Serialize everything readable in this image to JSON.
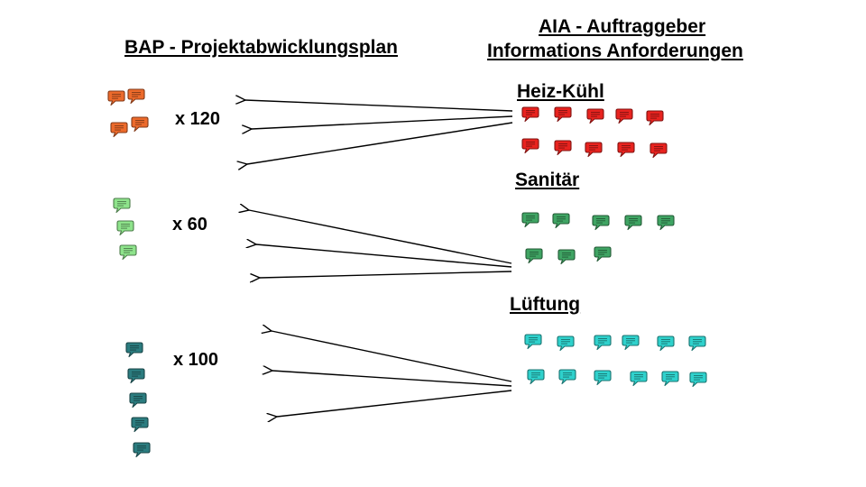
{
  "bap_title": "BAP - Projektabwicklungsplan",
  "aia_title_line1": "AIA - Auftraggeber",
  "aia_title_line2": "Informations Anforderungen",
  "sections": [
    {
      "key": "heiz",
      "label": "Heiz-Kühl",
      "count": "x 120",
      "color": "#e8231f",
      "bap_icon_color": "#ec6a2b",
      "icon_name": "speech-bubble-icon"
    },
    {
      "key": "sanitaer",
      "label": "Sanitär",
      "count": "x 60",
      "color": "#3fa463",
      "bap_icon_color": "#8ee38b",
      "icon_name": "speech-bubble-icon"
    },
    {
      "key": "lueftung",
      "label": "Lüftung",
      "count": "x 100",
      "color": "#2fd1cc",
      "bap_icon_color": "#2b7c7f",
      "icon_name": "speech-bubble-icon"
    }
  ]
}
